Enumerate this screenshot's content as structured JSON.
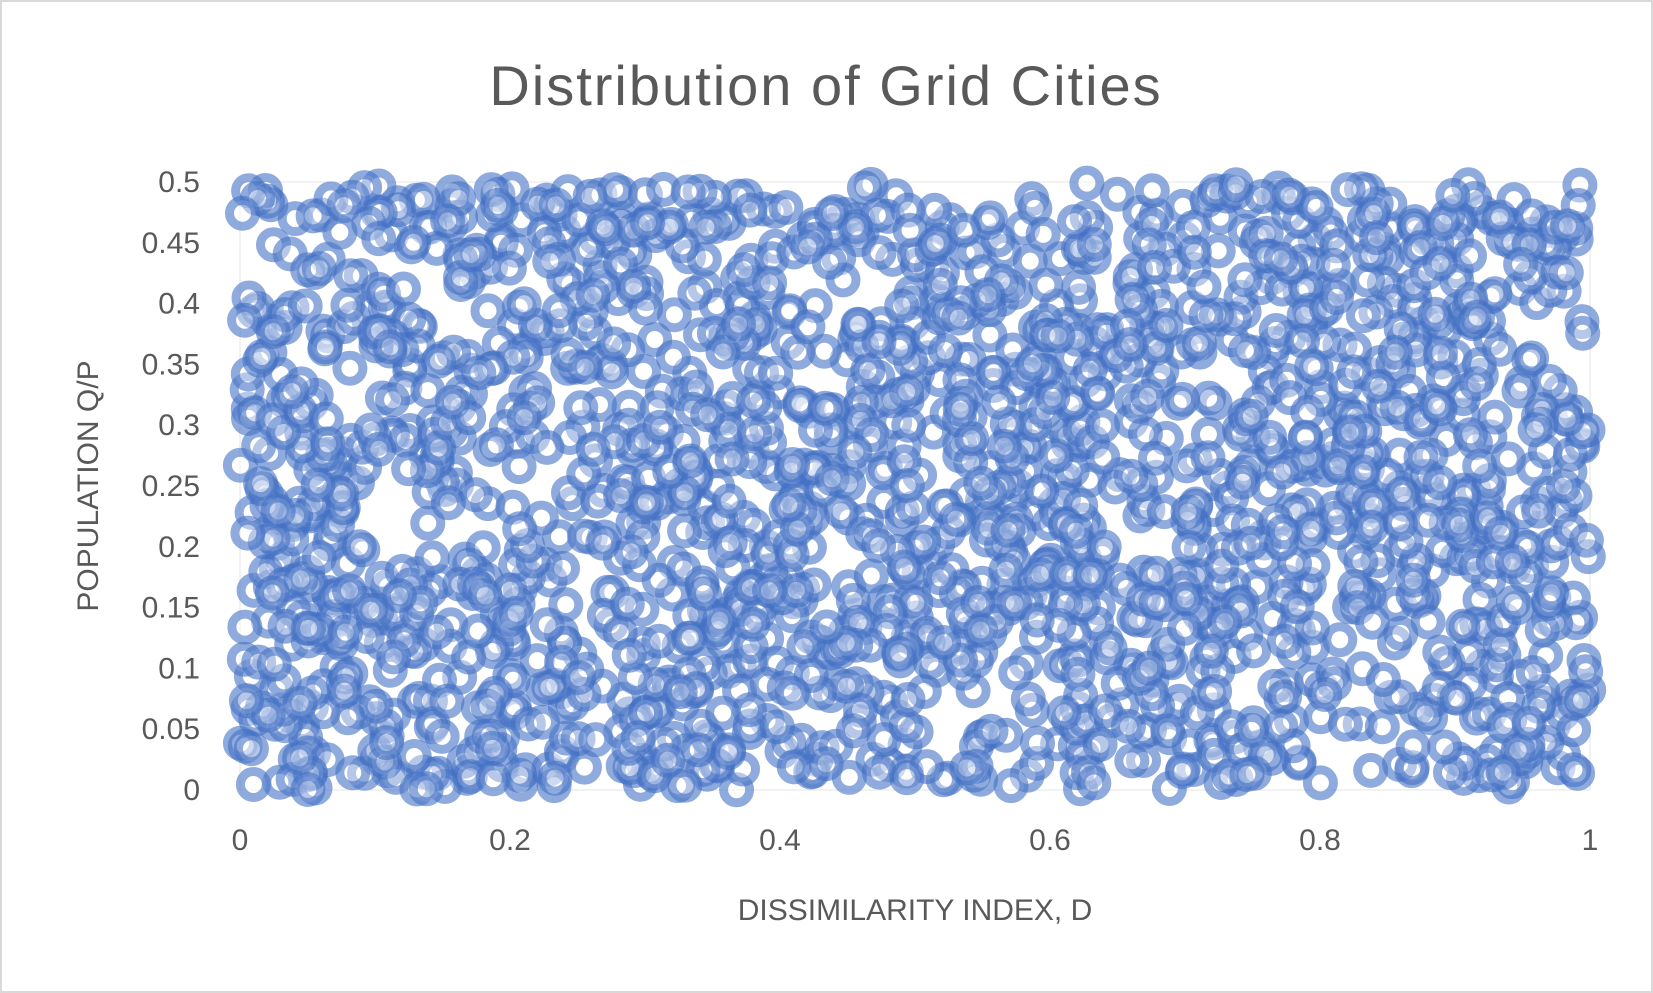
{
  "chart_data": {
    "type": "scatter",
    "title": "Distribution of Grid Cities",
    "xlabel": "DISSIMILARITY INDEX, D",
    "ylabel": "POPULATION Q/P",
    "xlim": [
      0,
      1
    ],
    "ylim": [
      0,
      0.5
    ],
    "x_ticks": [
      "0",
      "0.2",
      "0.4",
      "0.6",
      "0.8",
      "1"
    ],
    "y_ticks": [
      "0",
      "0.05",
      "0.1",
      "0.15",
      "0.2",
      "0.25",
      "0.3",
      "0.35",
      "0.4",
      "0.45",
      "0.5"
    ],
    "grid": false,
    "legend": "none",
    "marker_color": "#4472c4",
    "marker_fill_opacity": 0.6,
    "distribution": "uniform",
    "x_range": [
      0,
      1
    ],
    "y_range": [
      0,
      0.5
    ],
    "point_count": 2000
  }
}
